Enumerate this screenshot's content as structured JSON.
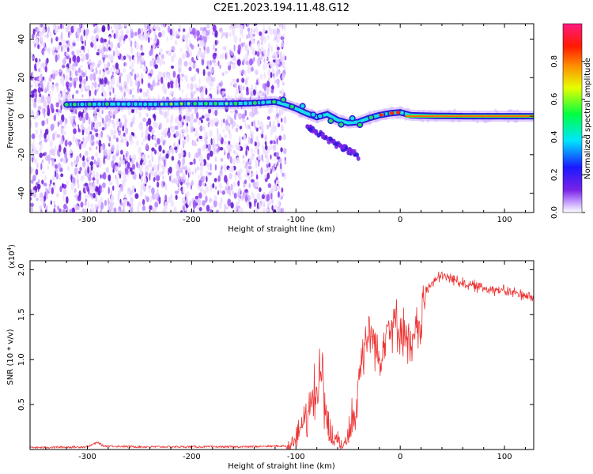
{
  "title": "C2E1.2023.194.11.48.G12",
  "colors": {
    "snr_line": "#ee3333",
    "ridge": "#2b1bd9",
    "ridge_core": "#17e0e6",
    "ridge_hot": "#ff2a10",
    "noise": "#7a22e6"
  },
  "chart_data": [
    {
      "type": "heatmap",
      "name": "spectrogram",
      "xlabel": "Height of straight line (km)",
      "ylabel": "Frequency (Hz)",
      "xlim": [
        -355,
        128
      ],
      "ylim": [
        -50,
        48
      ],
      "x_ticks": [
        -300,
        -200,
        -100,
        0,
        100
      ],
      "x_tick_labels": [
        "-300",
        "-200",
        "-100",
        "0",
        "100"
      ],
      "y_ticks": [
        -40,
        -20,
        0,
        20,
        40
      ],
      "y_tick_labels": [
        "-40",
        "-20",
        "0",
        "20",
        "40"
      ],
      "colorbar": {
        "label": "Normalized spectral amplitude",
        "range": [
          0,
          1
        ],
        "ticks": [
          0,
          0.2,
          0.4,
          0.6,
          0.8
        ],
        "tick_labels": [
          "0.0",
          "0.2",
          "0.4",
          "0.6",
          "0.8"
        ],
        "colormap": "rainbow (white-purple-blue-cyan-green-yellow-red-magenta)"
      },
      "dominant_ridge": [
        {
          "x": -320,
          "freq": 6.0
        },
        {
          "x": -300,
          "freq": 6.2
        },
        {
          "x": -280,
          "freq": 6.3
        },
        {
          "x": -260,
          "freq": 6.3
        },
        {
          "x": -240,
          "freq": 6.2
        },
        {
          "x": -220,
          "freq": 6.3
        },
        {
          "x": -200,
          "freq": 6.5
        },
        {
          "x": -180,
          "freq": 6.5
        },
        {
          "x": -160,
          "freq": 6.5
        },
        {
          "x": -140,
          "freq": 6.8
        },
        {
          "x": -120,
          "freq": 7.5
        },
        {
          "x": -110,
          "freq": 6.0
        },
        {
          "x": -100,
          "freq": 4.0
        },
        {
          "x": -90,
          "freq": 1.5
        },
        {
          "x": -80,
          "freq": -0.5
        },
        {
          "x": -70,
          "freq": 1.0
        },
        {
          "x": -60,
          "freq": -2.0
        },
        {
          "x": -50,
          "freq": -3.5
        },
        {
          "x": -40,
          "freq": -3.0
        },
        {
          "x": -30,
          "freq": -1.0
        },
        {
          "x": -20,
          "freq": 0.5
        },
        {
          "x": -10,
          "freq": 1.5
        },
        {
          "x": 0,
          "freq": 2.0
        },
        {
          "x": 10,
          "freq": 0.5
        },
        {
          "x": 30,
          "freq": 0.2
        },
        {
          "x": 60,
          "freq": 0.0
        },
        {
          "x": 90,
          "freq": 0.0
        },
        {
          "x": 128,
          "freq": 0.0
        }
      ],
      "secondary_branch": [
        {
          "x": -90,
          "freq": -5.0
        },
        {
          "x": -75,
          "freq": -10.0
        },
        {
          "x": -60,
          "freq": -15.0
        },
        {
          "x": -45,
          "freq": -19.0
        },
        {
          "x": -40,
          "freq": -21.0
        }
      ]
    },
    {
      "type": "line",
      "name": "snr",
      "xlabel": "Height of straight line (km)",
      "ylabel": "SNR (10 * v/v)",
      "scale_label": "(x10",
      "scale_exp": "4",
      "scale_close": ")",
      "xlim": [
        -355,
        128
      ],
      "ylim": [
        0,
        2.1
      ],
      "x_ticks": [
        -300,
        -200,
        -100,
        0,
        100
      ],
      "x_tick_labels": [
        "-300",
        "-200",
        "-100",
        "0",
        "100"
      ],
      "y_ticks": [
        0.5,
        1.0,
        1.5,
        2.0
      ],
      "y_tick_labels": [
        "0.5",
        "1.0",
        "1.5",
        "2.0"
      ],
      "series": [
        {
          "color": "#ee3333",
          "x": [
            -355,
            -300,
            -290,
            -285,
            -250,
            -200,
            -150,
            -110,
            -105,
            -100,
            -95,
            -90,
            -85,
            -80,
            -76,
            -73,
            -70,
            -65,
            -60,
            -55,
            -50,
            -45,
            -40,
            -35,
            -30,
            -25,
            -20,
            -15,
            -10,
            -5,
            0,
            5,
            10,
            15,
            20,
            25,
            30,
            40,
            50,
            60,
            70,
            80,
            90,
            100,
            110,
            120,
            128
          ],
          "y": [
            0.02,
            0.03,
            0.08,
            0.04,
            0.03,
            0.03,
            0.03,
            0.04,
            0.06,
            0.12,
            0.25,
            0.4,
            0.55,
            0.7,
            0.95,
            0.7,
            0.4,
            0.15,
            0.08,
            0.06,
            0.2,
            0.45,
            0.75,
            1.15,
            1.3,
            1.25,
            0.95,
            1.3,
            1.4,
            1.4,
            1.35,
            1.3,
            1.05,
            1.3,
            1.45,
            1.75,
            1.85,
            1.93,
            1.9,
            1.85,
            1.82,
            1.8,
            1.78,
            1.76,
            1.74,
            1.72,
            1.68
          ]
        }
      ]
    }
  ]
}
